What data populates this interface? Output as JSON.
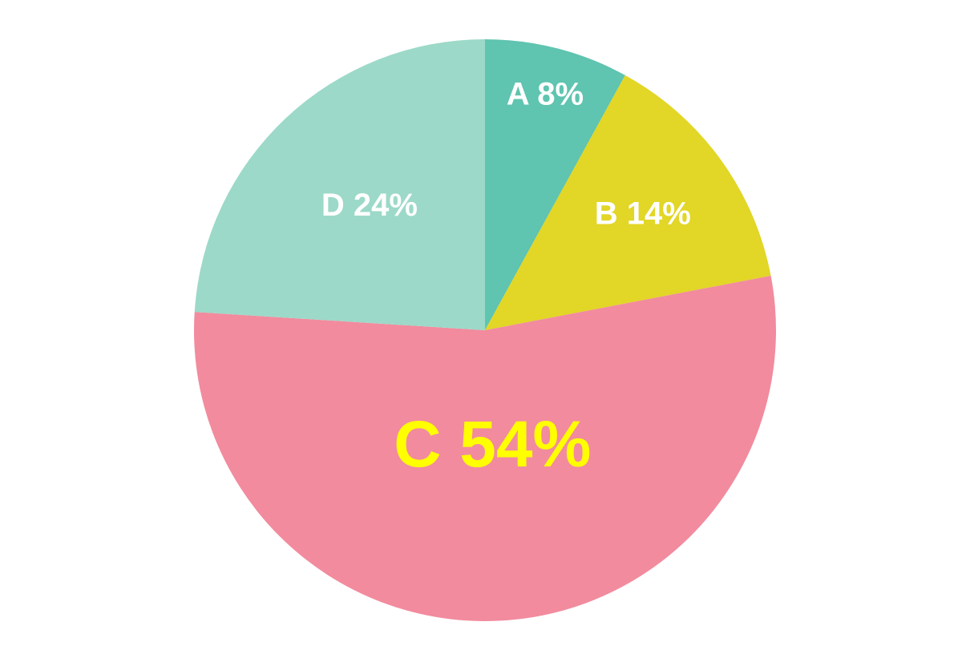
{
  "chart_data": {
    "type": "pie",
    "values": [
      8,
      14,
      54,
      24
    ],
    "value_labels": [
      "A 8%",
      "B 14%",
      "C 54%",
      "D 24%"
    ],
    "colors": [
      "#5fc4b0",
      "#e2d626",
      "#f28b9e",
      "#9cd9c8"
    ],
    "label_colors": [
      "#ffffff",
      "#ffffff",
      "#ffff00",
      "#ffffff"
    ]
  }
}
